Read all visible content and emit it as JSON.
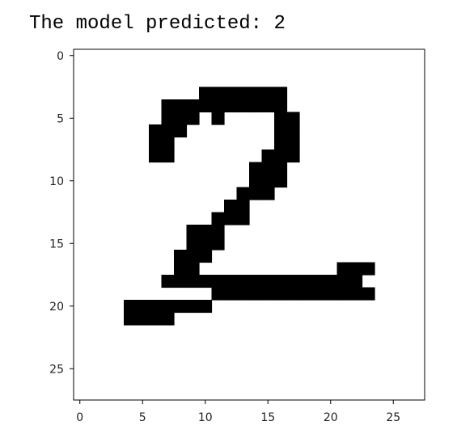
{
  "output": {
    "text": "The model predicted: 2"
  },
  "chart_data": {
    "type": "heatmap",
    "title": "",
    "xlabel": "",
    "ylabel": "",
    "colormap": "grayscale-inverted (black = ink, white = background)",
    "grid": false,
    "legend": "none",
    "image_shape": [
      28,
      28
    ],
    "xlim": [
      -0.5,
      27.5
    ],
    "ylim": [
      27.5,
      -0.5
    ],
    "x_ticks": [
      0,
      5,
      10,
      15,
      20,
      25
    ],
    "y_ticks": [
      0,
      5,
      10,
      15,
      20,
      25
    ],
    "x_tick_labels": [
      "0",
      "5",
      "10",
      "15",
      "20",
      "25"
    ],
    "y_tick_labels": [
      "0",
      "5",
      "10",
      "15",
      "20",
      "25"
    ],
    "ink_color": "#000000",
    "background_color": "#ffffff",
    "pixels": [
      "............................",
      "............................",
      "............................",
      "..........#######...........",
      ".......##########...........",
      ".......###.#....##..........",
      "......###.......##..........",
      "......##........##..........",
      "......##.......###..........",
      "..............###...........",
      "..............###...........",
      ".............###............",
      "............##..............",
      "...........###..............",
      ".........###................",
      ".........###................",
      "........###.................",
      "........##...........###....",
      ".......################.....",
      "...........#############....",
      "....#######.................",
      "....####....................",
      "............................",
      "............................",
      "............................",
      "............................",
      "............................",
      "............................"
    ]
  }
}
